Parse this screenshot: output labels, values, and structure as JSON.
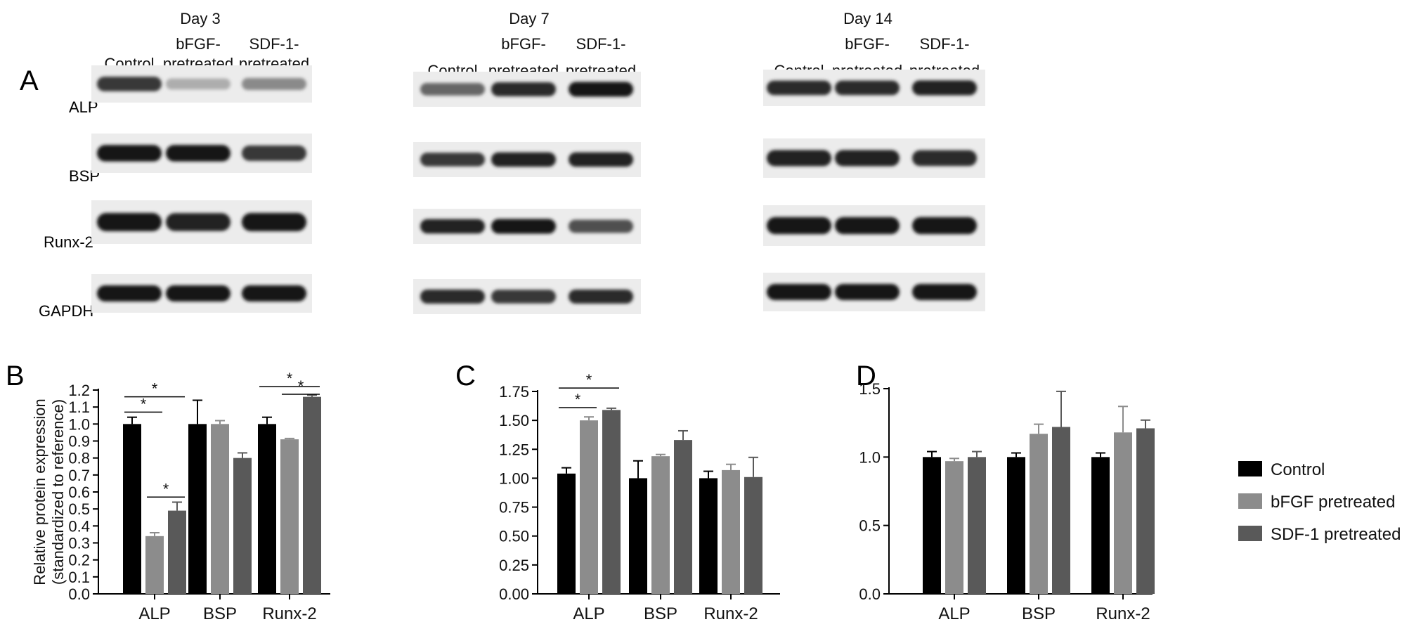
{
  "panel_labels": [
    "A",
    "B",
    "C",
    "D"
  ],
  "blots": {
    "row_labels": [
      "ALP",
      "BSP",
      "Runx-2",
      "GAPDH"
    ],
    "days": [
      {
        "title": "Day 3",
        "lanes": [
          {
            "line1": "",
            "line2": "Control"
          },
          {
            "line1": "bFGF-",
            "line2": "pretreated"
          },
          {
            "line1": "SDF-1-",
            "line2": "pretreated"
          }
        ],
        "band_intensity": [
          [
            0.85,
            0.35,
            0.5
          ],
          [
            1.0,
            1.0,
            0.85
          ],
          [
            1.0,
            0.95,
            1.0
          ],
          [
            1.0,
            1.0,
            1.0
          ]
        ]
      },
      {
        "title": "Day 7",
        "lanes": [
          {
            "line1": "",
            "line2": "Control"
          },
          {
            "line1": "bFGF-",
            "line2": "pretreated"
          },
          {
            "line1": "SDF-1-",
            "line2": "pretreated"
          }
        ],
        "band_intensity": [
          [
            0.65,
            0.9,
            1.0
          ],
          [
            0.85,
            0.95,
            0.95
          ],
          [
            0.95,
            1.0,
            0.75
          ],
          [
            0.9,
            0.85,
            0.9
          ]
        ]
      },
      {
        "title": "Day 14",
        "lanes": [
          {
            "line1": "",
            "line2": "Control"
          },
          {
            "line1": "bFGF-",
            "line2": "pretreated"
          },
          {
            "line1": "SDF-1-",
            "line2": "pretreated"
          }
        ],
        "band_intensity": [
          [
            0.9,
            0.9,
            0.95
          ],
          [
            0.95,
            0.95,
            0.9
          ],
          [
            1.0,
            1.0,
            1.0
          ],
          [
            1.0,
            1.0,
            1.0
          ]
        ]
      }
    ]
  },
  "legend": {
    "position": "right",
    "items": [
      {
        "label": "Control",
        "color": "#000000"
      },
      {
        "label": "bFGF pretreated",
        "color": "#8c8c8c"
      },
      {
        "label": "SDF-1 pretreated",
        "color": "#595959"
      }
    ]
  },
  "chart_data": [
    {
      "type": "bar",
      "panel": "B",
      "categories": [
        "ALP",
        "BSP",
        "Runx-2"
      ],
      "ylabel_line1": "Relative protein expression",
      "ylabel_line2": "(standardized to reference)",
      "ylim": [
        0,
        1.2
      ],
      "yticks": [
        "0.0",
        "0.1",
        "0.2",
        "0.3",
        "0.4",
        "0.5",
        "0.6",
        "0.7",
        "0.8",
        "0.9",
        "1.0",
        "1.1",
        "1.2"
      ],
      "series": [
        {
          "name": "Control",
          "color": "#000000",
          "values": [
            1.0,
            1.0,
            1.0
          ],
          "errors": [
            0.04,
            0.14,
            0.04
          ]
        },
        {
          "name": "bFGF pretreated",
          "color": "#8c8c8c",
          "values": [
            0.34,
            1.0,
            0.91
          ],
          "errors": [
            0.02,
            0.02,
            0.005
          ]
        },
        {
          "name": "SDF-1 pretreated",
          "color": "#595959",
          "values": [
            0.49,
            0.8,
            1.16
          ],
          "errors": [
            0.05,
            0.03,
            0.01
          ]
        }
      ],
      "significance": [
        {
          "category": 0,
          "from": 0,
          "to": 1,
          "y": 1.07,
          "label": "*"
        },
        {
          "category": 0,
          "from": 0,
          "to": 2,
          "y": 1.16,
          "label": "*"
        },
        {
          "category": 0,
          "from": 1,
          "to": 2,
          "y": 0.57,
          "label": "*"
        },
        {
          "category": 2,
          "from": 0,
          "to": 2,
          "y": 1.22,
          "label": "*"
        },
        {
          "category": 2,
          "from": 1,
          "to": 2,
          "y": 1.175,
          "label": "*"
        }
      ]
    },
    {
      "type": "bar",
      "panel": "C",
      "categories": [
        "ALP",
        "BSP",
        "Runx-2"
      ],
      "ylim": [
        0,
        1.75
      ],
      "yticks": [
        "0.00",
        "0.25",
        "0.50",
        "0.75",
        "1.00",
        "1.25",
        "1.50",
        "1.75"
      ],
      "series": [
        {
          "name": "Control",
          "color": "#000000",
          "values": [
            1.04,
            1.0,
            1.0
          ],
          "errors": [
            0.05,
            0.15,
            0.06
          ]
        },
        {
          "name": "bFGF pretreated",
          "color": "#8c8c8c",
          "values": [
            1.5,
            1.19,
            1.07
          ],
          "errors": [
            0.03,
            0.015,
            0.05
          ]
        },
        {
          "name": "SDF-1 pretreated",
          "color": "#595959",
          "values": [
            1.59,
            1.33,
            1.01
          ],
          "errors": [
            0.015,
            0.08,
            0.17
          ]
        }
      ],
      "significance": [
        {
          "category": 0,
          "from": 0,
          "to": 1,
          "y": 1.61,
          "label": "*"
        },
        {
          "category": 0,
          "from": 0,
          "to": 2,
          "y": 1.78,
          "label": "*"
        }
      ]
    },
    {
      "type": "bar",
      "panel": "D",
      "categories": [
        "ALP",
        "BSP",
        "Runx-2"
      ],
      "ylim": [
        0,
        1.5
      ],
      "yticks": [
        "0.0",
        "0.5",
        "1.0",
        "1.5"
      ],
      "series": [
        {
          "name": "Control",
          "color": "#000000",
          "values": [
            1.0,
            1.0,
            1.0
          ],
          "errors": [
            0.04,
            0.03,
            0.03
          ]
        },
        {
          "name": "bFGF pretreated",
          "color": "#8c8c8c",
          "values": [
            0.97,
            1.17,
            1.18
          ],
          "errors": [
            0.02,
            0.07,
            0.19
          ]
        },
        {
          "name": "SDF-1 pretreated",
          "color": "#595959",
          "values": [
            1.0,
            1.22,
            1.21
          ],
          "errors": [
            0.04,
            0.26,
            0.06
          ]
        }
      ],
      "significance": []
    }
  ]
}
